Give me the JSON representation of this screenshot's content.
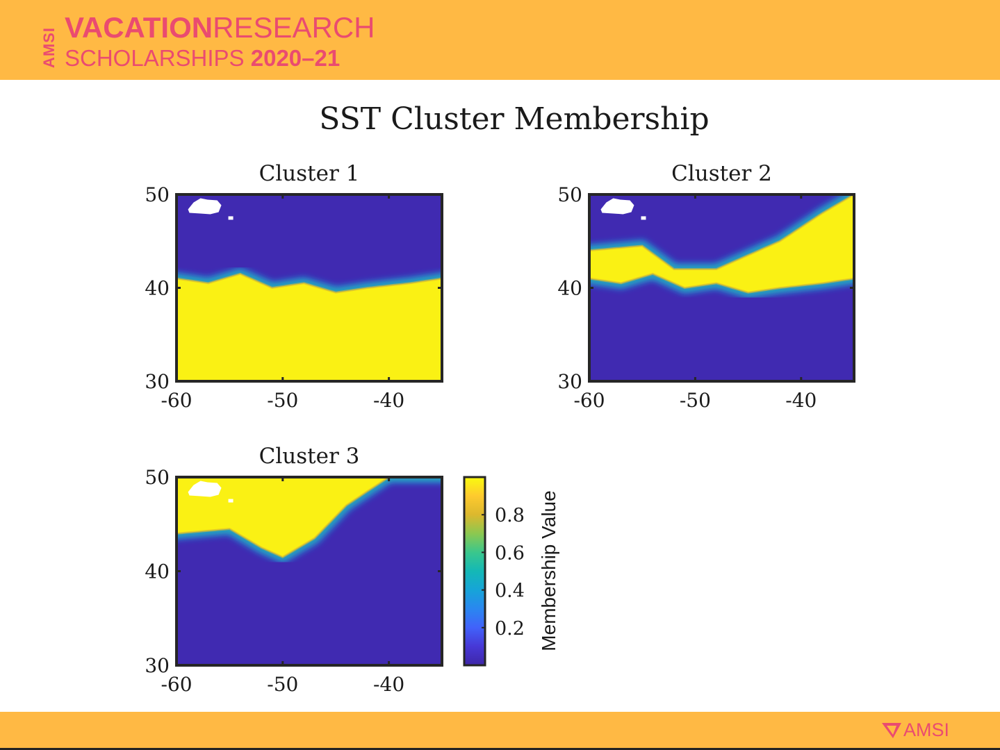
{
  "header": {
    "logo_vertical": "AMSI",
    "logo_line1_bold": "VACATION",
    "logo_line1_regular": "RESEARCH",
    "logo_line2_regular": "SCHOLARSHIPS ",
    "logo_line2_bold": "2020–21"
  },
  "footer": {
    "logo_text": "AMSI"
  },
  "colors": {
    "band": "#ffb944",
    "brand_pink": "#ea4b70",
    "parula_low": "#3e26a8",
    "parula_high": "#f9fb0e"
  },
  "chart_data": {
    "type": "heatmap",
    "title": "SST Cluster Membership",
    "colormap": "parula",
    "colorbar": {
      "label": "Membership Value",
      "ticks": [
        "0.2",
        "0.4",
        "0.6",
        "0.8"
      ],
      "range": [
        0,
        1
      ]
    },
    "panels": [
      {
        "title": "Cluster 1",
        "xlim": [
          -60,
          -35
        ],
        "ylim": [
          30,
          50
        ],
        "xticks": [
          "-60",
          "-50",
          "-40"
        ],
        "yticks": [
          "30",
          "40",
          "50"
        ],
        "high_region": "south",
        "boundary_lat_by_lon": [
          [
            -60,
            41.0
          ],
          [
            -57,
            40.5
          ],
          [
            -54,
            41.5
          ],
          [
            -51,
            40.0
          ],
          [
            -48,
            40.5
          ],
          [
            -45,
            39.5
          ],
          [
            -42,
            40.0
          ],
          [
            -38,
            40.5
          ],
          [
            -35,
            41.0
          ]
        ],
        "value_high": 0.98,
        "value_low": 0.02
      },
      {
        "title": "Cluster 2",
        "xlim": [
          -60,
          -35
        ],
        "ylim": [
          30,
          50
        ],
        "xticks": [
          "-60",
          "-50",
          "-40"
        ],
        "yticks": [
          "30",
          "40",
          "50"
        ],
        "high_region": "band",
        "boundary_lat_by_lon": [
          [
            -60,
            44.0
          ],
          [
            -55,
            44.5
          ],
          [
            -52,
            42.0
          ],
          [
            -48,
            42.0
          ],
          [
            -45,
            43.5
          ],
          [
            -42,
            45.0
          ],
          [
            -38,
            48.0
          ],
          [
            -35,
            50.0
          ]
        ],
        "lower_boundary_lat_by_lon": [
          [
            -60,
            41.0
          ],
          [
            -57,
            40.5
          ],
          [
            -54,
            41.5
          ],
          [
            -51,
            40.0
          ],
          [
            -48,
            40.5
          ],
          [
            -45,
            39.5
          ],
          [
            -42,
            40.0
          ],
          [
            -38,
            40.5
          ],
          [
            -35,
            41.0
          ]
        ],
        "value_high": 0.98,
        "value_low": 0.02
      },
      {
        "title": "Cluster 3",
        "xlim": [
          -60,
          -35
        ],
        "ylim": [
          30,
          50
        ],
        "xticks": [
          "-60",
          "-50",
          "-40"
        ],
        "yticks": [
          "30",
          "40",
          "50"
        ],
        "high_region": "north",
        "boundary_lat_by_lon": [
          [
            -60,
            44.0
          ],
          [
            -55,
            44.5
          ],
          [
            -52,
            42.5
          ],
          [
            -50,
            41.5
          ],
          [
            -47,
            43.5
          ],
          [
            -44,
            47.0
          ],
          [
            -42,
            48.5
          ],
          [
            -40,
            50.0
          ],
          [
            -35,
            50.0
          ]
        ],
        "value_high": 0.98,
        "value_low": 0.02
      }
    ],
    "land_mask": "white patch near (-58, 49)"
  }
}
